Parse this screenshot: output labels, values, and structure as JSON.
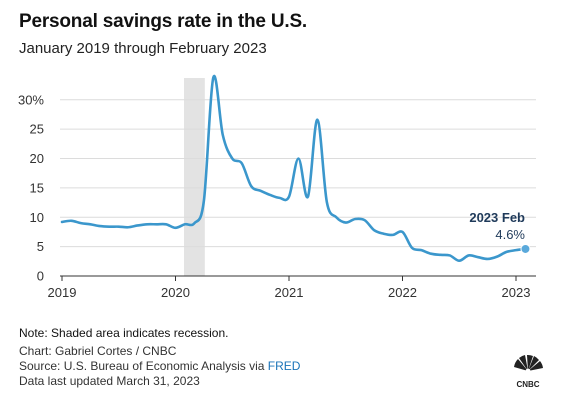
{
  "header": {
    "title": "Personal savings rate in the U.S.",
    "subtitle": "January 2019 through February 2023"
  },
  "chart_data": {
    "type": "line",
    "title": "Personal savings rate in the U.S.",
    "subtitle": "January 2019 through February 2023",
    "xlabel": "",
    "ylabel": "",
    "x_ticks": [
      "2019",
      "2020",
      "2021",
      "2022",
      "2023"
    ],
    "y_ticks": [
      "0",
      "5",
      "10",
      "15",
      "20",
      "25",
      "30%"
    ],
    "xlim": [
      "2019-01",
      "2023-03"
    ],
    "ylim": [
      0,
      32
    ],
    "grid": "horizontal",
    "line_color": "#3b97cc",
    "recession_color": "#e3e3e3",
    "recessions": [
      {
        "start": "2020-02",
        "end": "2020-04"
      }
    ],
    "series": [
      {
        "x": [
          "2019-01",
          "2019-02",
          "2019-03",
          "2019-04",
          "2019-05",
          "2019-06",
          "2019-07",
          "2019-08",
          "2019-09",
          "2019-10",
          "2019-11",
          "2019-12",
          "2020-01",
          "2020-02",
          "2020-03",
          "2020-04",
          "2020-05",
          "2020-06",
          "2020-07",
          "2020-08",
          "2020-09",
          "2020-10",
          "2020-11",
          "2020-12",
          "2021-01",
          "2021-02",
          "2021-03",
          "2021-04",
          "2021-05",
          "2021-06",
          "2021-07",
          "2021-08",
          "2021-09",
          "2021-10",
          "2021-11",
          "2021-12",
          "2022-01",
          "2022-02",
          "2022-03",
          "2022-04",
          "2022-05",
          "2022-06",
          "2022-07",
          "2022-08",
          "2022-09",
          "2022-10",
          "2022-11",
          "2022-12",
          "2023-01",
          "2023-02"
        ],
        "values": [
          9.2,
          9.4,
          9.0,
          8.8,
          8.5,
          8.4,
          8.4,
          8.3,
          8.6,
          8.8,
          8.8,
          8.8,
          8.2,
          8.8,
          9.0,
          12.8,
          33.8,
          24.0,
          20.0,
          19.2,
          15.3,
          14.5,
          13.8,
          13.3,
          13.5,
          20.0,
          13.5,
          26.6,
          12.6,
          10.0,
          9.1,
          9.7,
          9.5,
          7.8,
          7.2,
          7.0,
          7.5,
          4.8,
          4.4,
          3.8,
          3.6,
          3.5,
          2.6,
          3.5,
          3.2,
          2.9,
          3.3,
          4.1,
          4.4,
          4.6
        ]
      }
    ],
    "annotation": {
      "label": "2023 Feb",
      "value": "4.6%",
      "x": "2023-02",
      "y": 4.6
    }
  },
  "footer": {
    "note": "Note: Shaded area indicates recession.",
    "credit": "Chart: Gabriel Cortes / CNBC",
    "source_prefix": "Source: U.S. Bureau of Economic Analysis via ",
    "source_link": "FRED",
    "updated": "Data last updated March 31, 2023",
    "logo_text": "CNBC"
  }
}
